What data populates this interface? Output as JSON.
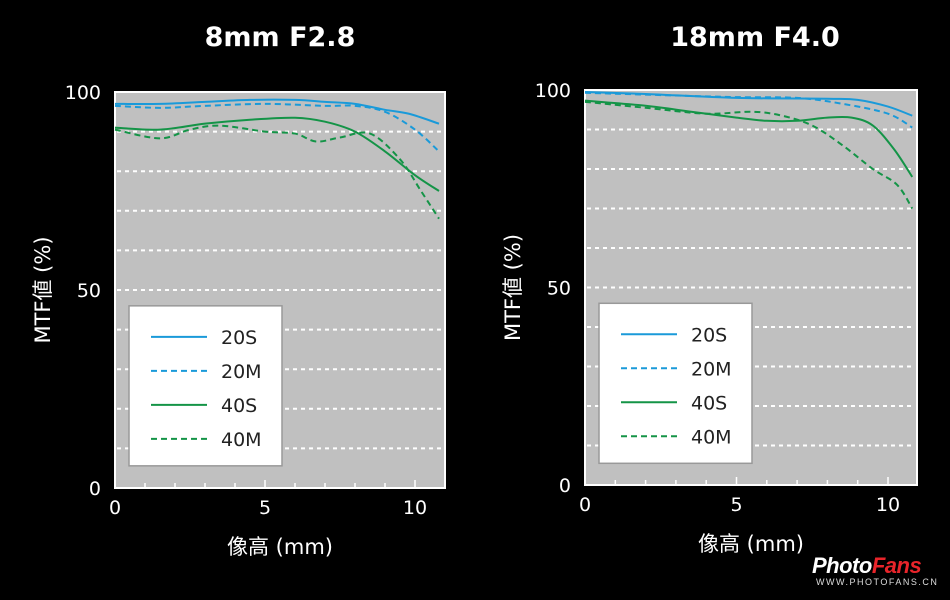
{
  "chart_data": [
    {
      "type": "line",
      "title": "8mm F2.8",
      "xlabel": "像高 (mm)",
      "ylabel": "MTF値 (%)",
      "xlim": [
        0,
        11
      ],
      "ylim": [
        0,
        100
      ],
      "xticks": [
        "0",
        "5",
        "10"
      ],
      "yticks": [
        "0",
        "50",
        "100"
      ],
      "grid": true,
      "legend": "bottom-left",
      "series": [
        {
          "name": "20S",
          "color": "#1a9ad9",
          "style": "solid",
          "x": [
            0,
            1.5,
            3,
            4.5,
            6,
            7,
            8,
            9,
            9.8,
            10.8
          ],
          "y": [
            97,
            97,
            97.5,
            98,
            98,
            97.5,
            97,
            95.5,
            94.5,
            92
          ]
        },
        {
          "name": "20M",
          "color": "#1a9ad9",
          "style": "dashed",
          "x": [
            0,
            1.5,
            3,
            5,
            7,
            8,
            9,
            10,
            10.8
          ],
          "y": [
            96.5,
            96,
            96.5,
            97,
            96.5,
            96.5,
            95,
            90.5,
            85
          ]
        },
        {
          "name": "40S",
          "color": "#149447",
          "style": "solid",
          "x": [
            0,
            1.5,
            3,
            4.5,
            6,
            7,
            8,
            9,
            10,
            10.8
          ],
          "y": [
            91,
            90.5,
            92,
            93,
            93.5,
            92.5,
            90,
            85,
            79,
            75
          ]
        },
        {
          "name": "40M",
          "color": "#149447",
          "style": "dashed",
          "x": [
            0,
            1.5,
            2.5,
            3.5,
            5,
            6,
            6.7,
            7.5,
            8.5,
            9.5,
            10.2,
            10.8
          ],
          "y": [
            90.5,
            88.3,
            90.5,
            91.5,
            90,
            89.5,
            87.5,
            88.5,
            89.5,
            83,
            75,
            68
          ]
        }
      ]
    },
    {
      "type": "line",
      "title": "18mm F4.0",
      "xlabel": "像高 (mm)",
      "ylabel": "MTF値 (%)",
      "xlim": [
        0,
        11
      ],
      "ylim": [
        0,
        100
      ],
      "xticks": [
        "0",
        "5",
        "10"
      ],
      "yticks": [
        "0",
        "50",
        "100"
      ],
      "grid": true,
      "legend": "bottom-left",
      "series": [
        {
          "name": "20S",
          "color": "#1a9ad9",
          "style": "solid",
          "x": [
            0,
            2,
            5,
            8,
            9,
            10,
            10.8
          ],
          "y": [
            99.5,
            99,
            98,
            97.8,
            97.5,
            95.8,
            93.5
          ]
        },
        {
          "name": "20M",
          "color": "#1a9ad9",
          "style": "dashed",
          "x": [
            0,
            3,
            5,
            7,
            8.5,
            10,
            10.8
          ],
          "y": [
            99.3,
            98.6,
            98.2,
            98,
            96.5,
            94,
            90.5
          ]
        },
        {
          "name": "40S",
          "color": "#149447",
          "style": "solid",
          "x": [
            0,
            2,
            3.5,
            5,
            6,
            7,
            8,
            8.8,
            9.5,
            10.2,
            10.8
          ],
          "y": [
            97.3,
            96,
            94.5,
            93,
            92.2,
            92.2,
            93,
            93,
            91,
            85,
            78
          ]
        },
        {
          "name": "40M",
          "color": "#149447",
          "style": "dashed",
          "x": [
            0,
            2,
            4,
            5.5,
            6.5,
            7.5,
            8.5,
            9.5,
            10.3,
            10.8
          ],
          "y": [
            97,
            95.5,
            94,
            94.5,
            93.5,
            91,
            86,
            80,
            76,
            70
          ]
        }
      ]
    }
  ],
  "watermark": {
    "brand": "PhotoFans",
    "brand_a": "Photo",
    "brand_b": "Fans",
    "url": "WWW.PHOTOFANS.CN"
  }
}
